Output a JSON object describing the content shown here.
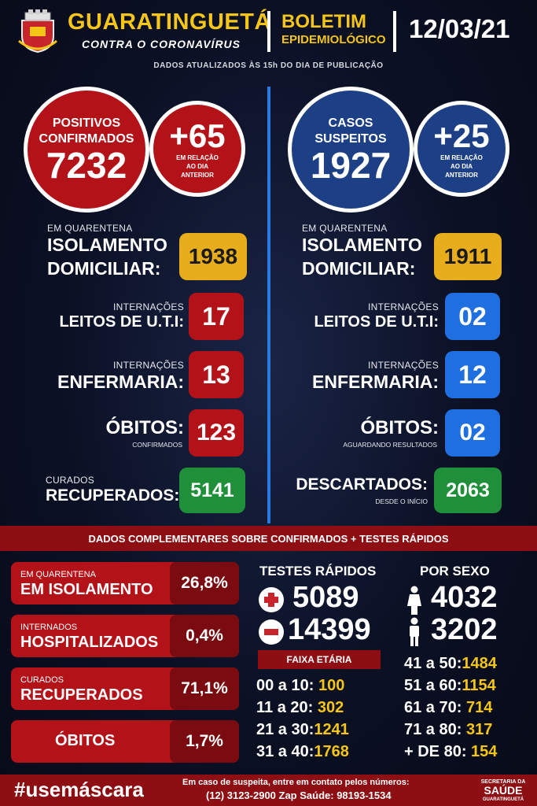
{
  "header": {
    "city": "GUARATINGUETÁ",
    "subtitle": "CONTRA O CORONAVÍRUS",
    "boletim_1": "BOLETIM",
    "boletim_2": "EPIDEMIOLÓGICO",
    "date": "12/03/21",
    "updated": "DADOS ATUALIZADOS ÀS 15h DO DIA DE PUBLICAÇÃO"
  },
  "left": {
    "circle_label_1": "POSITIVOS",
    "circle_label_2": "CONFIRMADOS",
    "circle_value": "7232",
    "delta_value": "+65",
    "delta_note_1": "EM RELAÇÃO",
    "delta_note_2": "AO DIA",
    "delta_note_3": "ANTERIOR",
    "quarentena_small": "EM QUARENTENA",
    "isolamento_1": "ISOLAMENTO",
    "isolamento_2": "DOMICILIAR:",
    "isolamento_value": "1938",
    "uti_small": "INTERNAÇÕES",
    "uti_big": "LEITOS DE U.T.I:",
    "uti_value": "17",
    "enf_small": "INTERNAÇÕES",
    "enf_big": "ENFERMARIA:",
    "enf_value": "13",
    "obitos_big": "ÓBITOS:",
    "obitos_small": "CONFIRMADOS",
    "obitos_value": "123",
    "curados_small": "CURADOS",
    "curados_big": "RECUPERADOS:",
    "curados_value": "5141"
  },
  "right": {
    "circle_label_1": "CASOS",
    "circle_label_2": "SUSPEITOS",
    "circle_value": "1927",
    "delta_value": "+25",
    "delta_note_1": "EM RELAÇÃO",
    "delta_note_2": "AO DIA",
    "delta_note_3": "ANTERIOR",
    "quarentena_small": "EM QUARENTENA",
    "isolamento_1": "ISOLAMENTO",
    "isolamento_2": "DOMICILIAR:",
    "isolamento_value": "1911",
    "uti_small": "INTERNAÇÕES",
    "uti_big": "LEITOS DE U.T.I:",
    "uti_value": "02",
    "enf_small": "INTERNAÇÕES",
    "enf_big": "ENFERMARIA:",
    "enf_value": "12",
    "obitos_big": "ÓBITOS:",
    "obitos_small": "AGUARDANDO RESULTADOS",
    "obitos_value": "02",
    "desc_big": "DESCARTADOS:",
    "desc_small": "DESDE O INÍCIO",
    "desc_value": "2063"
  },
  "complement": {
    "banner": "DADOS COMPLEMENTARES SOBRE CONFIRMADOS + TESTES RÁPIDOS",
    "bars": [
      {
        "small": "EM QUARENTENA",
        "big": "EM ISOLAMENTO",
        "pct": "26,8%"
      },
      {
        "small": "INTERNADOS",
        "big": "HOSPITALIZADOS",
        "pct": "0,4%"
      },
      {
        "small": "CURADOS",
        "big": "RECUPERADOS",
        "pct": "71,1%"
      },
      {
        "small": "",
        "big": "ÓBITOS",
        "pct": "1,7%"
      }
    ],
    "testes_title": "TESTES RÁPIDOS",
    "testes_pos": "5089",
    "testes_neg": "14399",
    "sexo_title": "POR SEXO",
    "sexo_fem": "4032",
    "sexo_masc": "3202",
    "faixa_title": "FAIXA ETÁRIA",
    "ages_left": [
      {
        "range": "00 a 10:",
        "value": "100"
      },
      {
        "range": "11 a 20:",
        "value": "302"
      },
      {
        "range": "21 a 30:",
        "value": "1241"
      },
      {
        "range": "31 a 40:",
        "value": "1768"
      }
    ],
    "ages_right": [
      {
        "range": "41 a 50:",
        "value": "1484"
      },
      {
        "range": "51 a 60:",
        "value": "1154"
      },
      {
        "range": "61 a 70:",
        "value": "714"
      },
      {
        "range": "71 a 80:",
        "value": "317"
      },
      {
        "range": "+ DE 80:",
        "value": "154"
      }
    ]
  },
  "footer": {
    "hashtag": "#usemáscara",
    "line1": "Em caso de suspeita, entre em contato pelos números:",
    "line2": "(12) 3123-2900 Zap Saúde: 98193-1534",
    "sec_1": "SECRETARIA DA",
    "sec_2": "SAÚDE",
    "sec_3": "GUARATINGUETÁ"
  },
  "colors": {
    "red": "#b31218",
    "blue": "#1d3f86",
    "gold": "#e7ad1d",
    "green": "#1f8f3a",
    "bright_blue": "#1f6fe0"
  },
  "icons": [
    "city-crest-icon",
    "plus-icon",
    "minus-icon",
    "female-icon",
    "male-icon"
  ]
}
